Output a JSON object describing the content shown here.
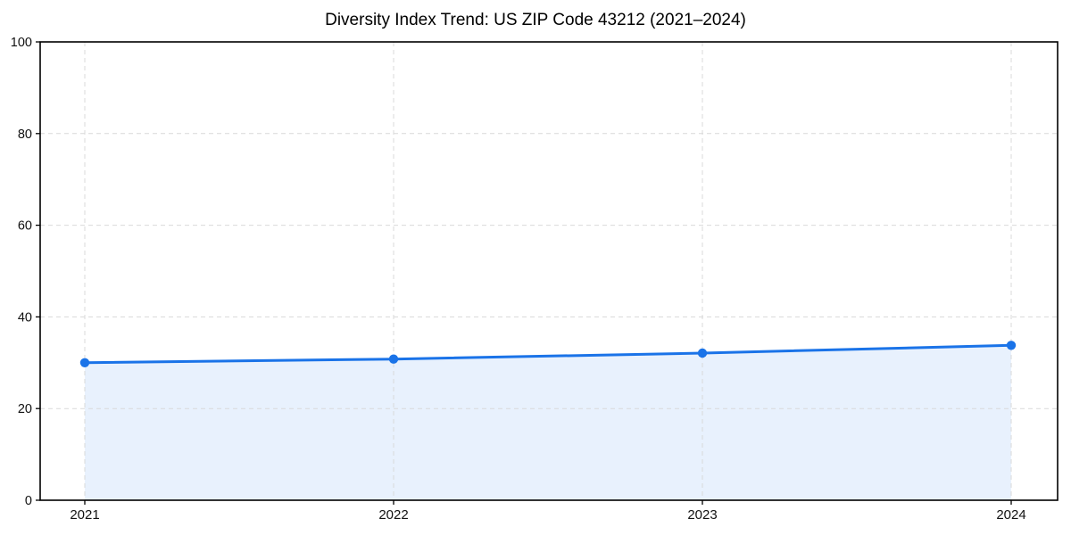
{
  "chart_data": {
    "type": "area",
    "title": "Diversity Index Trend: US ZIP Code 43212 (2021–2024)",
    "categories": [
      "2021",
      "2022",
      "2023",
      "2024"
    ],
    "series": [
      {
        "name": "Diversity Index",
        "values": [
          30.0,
          30.8,
          32.1,
          33.8
        ]
      }
    ],
    "xlabel": "",
    "ylabel": "",
    "ylim": [
      0,
      100
    ],
    "yticks": [
      0,
      20,
      40,
      60,
      80,
      100
    ],
    "grid": true,
    "grid_style": "dashed",
    "legend_position": "none",
    "marker": "circle",
    "colors": {
      "line": "#1a73e8",
      "marker": "#1a73e8",
      "fill": "rgba(26,115,232,0.10)",
      "grid": "#d9d9d9",
      "axis": "#000000",
      "text": "#111111",
      "background": "#ffffff"
    }
  }
}
